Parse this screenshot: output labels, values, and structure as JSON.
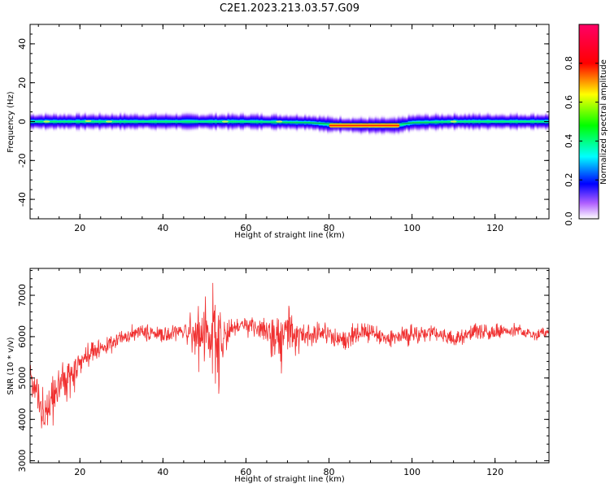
{
  "title": "C2E1.2023.213.03.57.G09",
  "colors": {
    "snr_line": "#f03030",
    "axis": "#000000",
    "background": "#ffffff"
  },
  "chart_data": [
    {
      "type": "heatmap",
      "xlabel": "Height of straight line (km)",
      "ylabel": "Frequency (Hz)",
      "xlim": [
        8,
        133
      ],
      "ylim": [
        -50,
        50
      ],
      "xticks": [
        20,
        40,
        60,
        80,
        100,
        120
      ],
      "yticks": [
        40,
        20,
        0,
        -20,
        -40
      ],
      "band_center_hz": [
        [
          8,
          0
        ],
        [
          20,
          0
        ],
        [
          40,
          0
        ],
        [
          60,
          0
        ],
        [
          75,
          -0.5
        ],
        [
          80,
          -1.5
        ],
        [
          88,
          -2
        ],
        [
          96,
          -2
        ],
        [
          100,
          -0.5
        ],
        [
          110,
          0
        ],
        [
          133,
          0
        ]
      ],
      "band_halfwidth_hz": 5,
      "peak_region_km": [
        80,
        97
      ],
      "colorbar": {
        "label": "Normalized spectral amplitude",
        "ticks": [
          "0.0",
          "0.2",
          "0.4",
          "0.6",
          "0.8"
        ],
        "range": [
          0,
          1
        ],
        "colormap": "hsv-rainbow"
      }
    },
    {
      "type": "line",
      "xlabel": "Height of straight line (km)",
      "ylabel": "SNR (10 * v/v)",
      "xlim": [
        8,
        133
      ],
      "ylim": [
        2950,
        7650
      ],
      "xticks": [
        20,
        40,
        60,
        80,
        100,
        120
      ],
      "yticks": [
        3000,
        4000,
        5000,
        6000,
        7000
      ],
      "series_envelope": {
        "x": [
          8,
          10,
          12,
          15,
          18,
          20,
          23,
          26,
          30,
          34,
          40,
          45,
          48,
          50,
          52,
          53,
          54,
          56,
          60,
          64,
          66,
          68,
          69,
          70,
          74,
          78,
          80,
          84,
          88,
          90,
          95,
          100,
          105,
          110,
          115,
          120,
          125,
          130,
          133
        ],
        "y": [
          4900,
          4400,
          4100,
          4900,
          5000,
          5400,
          5600,
          5750,
          5950,
          6100,
          6050,
          6150,
          6100,
          5900,
          6150,
          5900,
          5800,
          6200,
          6300,
          6150,
          5950,
          6050,
          5900,
          6100,
          6000,
          6150,
          6050,
          5900,
          6100,
          6050,
          5950,
          6050,
          6100,
          5950,
          6150,
          6100,
          6150,
          6050,
          6100
        ],
        "noise": [
          550,
          600,
          550,
          450,
          400,
          280,
          260,
          240,
          220,
          200,
          200,
          220,
          700,
          900,
          1300,
          1400,
          900,
          300,
          220,
          260,
          700,
          900,
          1000,
          700,
          300,
          250,
          260,
          260,
          240,
          240,
          260,
          240,
          220,
          220,
          220,
          180,
          170,
          150,
          150
        ]
      }
    }
  ]
}
